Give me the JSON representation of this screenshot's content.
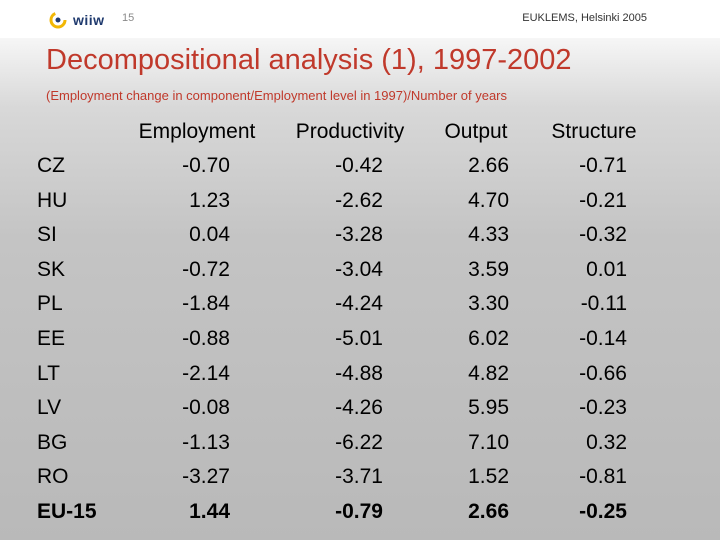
{
  "header": {
    "logo_text": "wiiw",
    "logo_icon": "wiiw-swirl-logo",
    "slide_number": "15",
    "event": "EUKLEMS, Helsinki 2005"
  },
  "title": "Decompositional analysis (1), 1997-2002",
  "subtitle": "(Employment change in component/Employment level in 1997)/Number of years",
  "colors": {
    "title": "#c0392b",
    "background_top": "#f6f6f6",
    "background_bottom": "#b9b9b9"
  },
  "table": {
    "columns": [
      "Employment",
      "Productivity",
      "Output",
      "Structure"
    ],
    "rows": [
      {
        "country": "CZ",
        "values": [
          "-0.70",
          "-0.42",
          "2.66",
          "-0.71"
        ],
        "bold": false
      },
      {
        "country": "HU",
        "values": [
          "1.23",
          "-2.62",
          "4.70",
          "-0.21"
        ],
        "bold": false
      },
      {
        "country": "SI",
        "values": [
          "0.04",
          "-3.28",
          "4.33",
          "-0.32"
        ],
        "bold": false
      },
      {
        "country": "SK",
        "values": [
          "-0.72",
          "-3.04",
          "3.59",
          "0.01"
        ],
        "bold": false
      },
      {
        "country": "PL",
        "values": [
          "-1.84",
          "-4.24",
          "3.30",
          "-0.11"
        ],
        "bold": false
      },
      {
        "country": "EE",
        "values": [
          "-0.88",
          "-5.01",
          "6.02",
          "-0.14"
        ],
        "bold": false
      },
      {
        "country": "LT",
        "values": [
          "-2.14",
          "-4.88",
          "4.82",
          "-0.66"
        ],
        "bold": false
      },
      {
        "country": "LV",
        "values": [
          "-0.08",
          "-4.26",
          "5.95",
          "-0.23"
        ],
        "bold": false
      },
      {
        "country": "BG",
        "values": [
          "-1.13",
          "-6.22",
          "7.10",
          "0.32"
        ],
        "bold": false
      },
      {
        "country": "RO",
        "values": [
          "-3.27",
          "-3.71",
          "1.52",
          "-0.81"
        ],
        "bold": false
      },
      {
        "country": "EU-15",
        "values": [
          "1.44",
          "-0.79",
          "2.66",
          "-0.25"
        ],
        "bold": true
      }
    ]
  }
}
